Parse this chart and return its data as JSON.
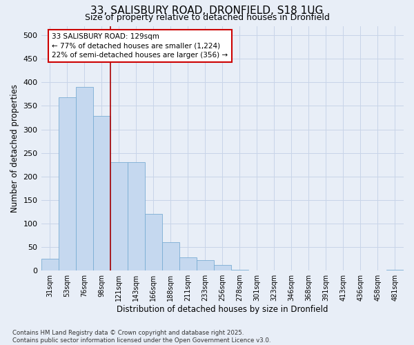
{
  "title_line1": "33, SALISBURY ROAD, DRONFIELD, S18 1UG",
  "title_line2": "Size of property relative to detached houses in Dronfield",
  "xlabel": "Distribution of detached houses by size in Dronfield",
  "ylabel": "Number of detached properties",
  "bar_color": "#c5d8ef",
  "bar_edge_color": "#7aadd4",
  "background_color": "#e8eef7",
  "categories": [
    "31sqm",
    "53sqm",
    "76sqm",
    "98sqm",
    "121sqm",
    "143sqm",
    "166sqm",
    "188sqm",
    "211sqm",
    "233sqm",
    "256sqm",
    "278sqm",
    "301sqm",
    "323sqm",
    "346sqm",
    "368sqm",
    "391sqm",
    "413sqm",
    "436sqm",
    "458sqm",
    "481sqm"
  ],
  "values": [
    25,
    368,
    390,
    328,
    230,
    230,
    120,
    60,
    28,
    22,
    12,
    2,
    1,
    1,
    1,
    1,
    1,
    1,
    1,
    1,
    2
  ],
  "ylim": [
    0,
    520
  ],
  "yticks": [
    0,
    50,
    100,
    150,
    200,
    250,
    300,
    350,
    400,
    450,
    500
  ],
  "vline_x": 3.5,
  "vline_color": "#aa0000",
  "annotation_title": "33 SALISBURY ROAD: 129sqm",
  "annotation_line1": "← 77% of detached houses are smaller (1,224)",
  "annotation_line2": "22% of semi-detached houses are larger (356) →",
  "annotation_box_color": "#ffffff",
  "annotation_box_edge": "#cc0000",
  "footer_line1": "Contains HM Land Registry data © Crown copyright and database right 2025.",
  "footer_line2": "Contains public sector information licensed under the Open Government Licence v3.0.",
  "grid_color": "#c8d4e8",
  "font_family": "DejaVu Sans"
}
